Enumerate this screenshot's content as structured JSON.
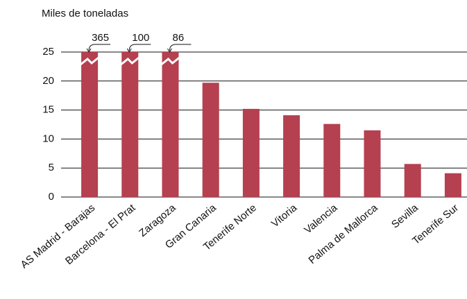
{
  "chart_data": {
    "type": "bar",
    "title": "Miles de toneladas",
    "categories": [
      "AS Madrid - Barajas",
      "Barcelona - El Prat",
      "Zaragoza",
      "Gran Canaria",
      "Tenerife Norte",
      "Vitoria",
      "Valencia",
      "Palma de Mallorca",
      "Sevilla",
      "Tenerife Sur"
    ],
    "values": [
      365,
      100,
      86,
      19.7,
      15.2,
      14.1,
      12.6,
      11.5,
      5.7,
      4.1
    ],
    "value_labels": [
      "365",
      "100",
      "86",
      null,
      null,
      null,
      null,
      null,
      null,
      null
    ],
    "color": "#b5404f",
    "ylim": [
      0,
      25
    ],
    "yticks": [
      0,
      5,
      10,
      15,
      20,
      25
    ],
    "grid": true
  }
}
